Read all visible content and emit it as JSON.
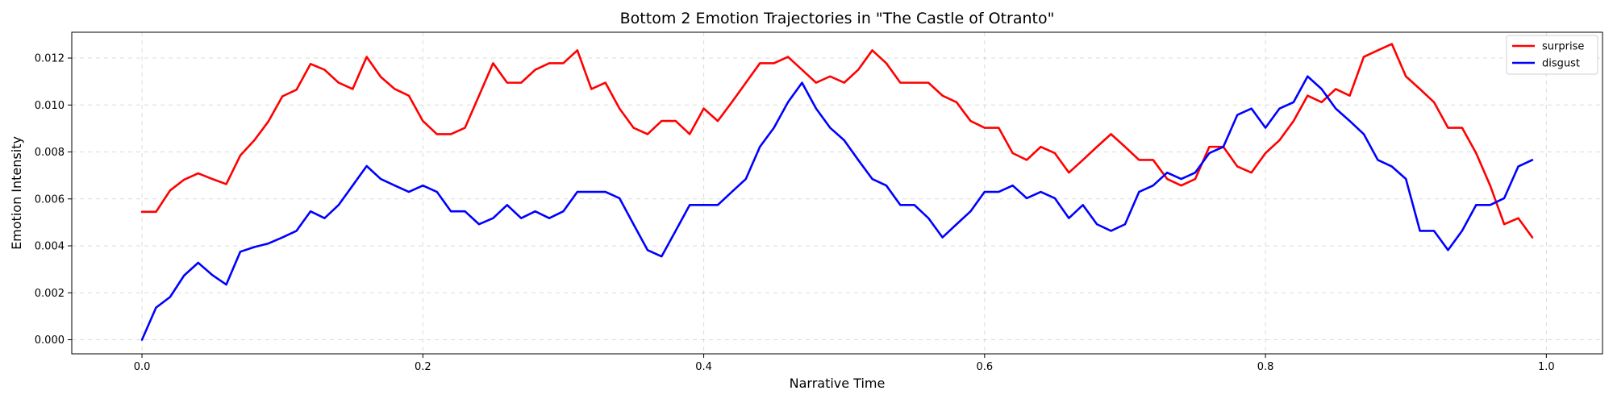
{
  "chart_data": {
    "type": "line",
    "title": "Bottom 2 Emotion Trajectories in \"The Castle of Otranto\"",
    "xlabel": "Narrative Time",
    "ylabel": "Emotion Intensity",
    "xlim": [
      -0.05,
      1.04
    ],
    "ylim": [
      -0.0006,
      0.0131
    ],
    "xticks": [
      0.0,
      0.2,
      0.4,
      0.6,
      0.8,
      1.0
    ],
    "xtick_labels": [
      "0.0",
      "0.2",
      "0.4",
      "0.6",
      "0.8",
      "1.0"
    ],
    "yticks": [
      0.0,
      0.002,
      0.004,
      0.006,
      0.008,
      0.01,
      0.012
    ],
    "ytick_labels": [
      "0.000",
      "0.002",
      "0.004",
      "0.006",
      "0.008",
      "0.010",
      "0.012"
    ],
    "grid": true,
    "legend_position": "top-right",
    "x": [
      0.0,
      0.01,
      0.02,
      0.03,
      0.04,
      0.05,
      0.06,
      0.07,
      0.08,
      0.09,
      0.1,
      0.11,
      0.12,
      0.13,
      0.14,
      0.15,
      0.16,
      0.17,
      0.18,
      0.19,
      0.2,
      0.21,
      0.22,
      0.23,
      0.24,
      0.25,
      0.26,
      0.27,
      0.28,
      0.29,
      0.3,
      0.31,
      0.32,
      0.33,
      0.34,
      0.35,
      0.36,
      0.37,
      0.38,
      0.39,
      0.4,
      0.41,
      0.42,
      0.43,
      0.44,
      0.45,
      0.46,
      0.47,
      0.48,
      0.49,
      0.5,
      0.51,
      0.52,
      0.53,
      0.54,
      0.55,
      0.56,
      0.57,
      0.58,
      0.59,
      0.6,
      0.61,
      0.62,
      0.63,
      0.64,
      0.65,
      0.66,
      0.67,
      0.68,
      0.69,
      0.7,
      0.71,
      0.72,
      0.73,
      0.74,
      0.75,
      0.76,
      0.77,
      0.78,
      0.79,
      0.8,
      0.81,
      0.82,
      0.83,
      0.84,
      0.85,
      0.86,
      0.87,
      0.88,
      0.89,
      0.9,
      0.91,
      0.92,
      0.93,
      0.94,
      0.95,
      0.96,
      0.97,
      0.98,
      0.99
    ],
    "series": [
      {
        "name": "surprise",
        "color": "#ff0000",
        "values": [
          0.00545,
          0.00545,
          0.00636,
          0.00682,
          0.00709,
          0.00685,
          0.00663,
          0.00785,
          0.0085,
          0.0093,
          0.01037,
          0.01065,
          0.01175,
          0.0115,
          0.01095,
          0.01068,
          0.01205,
          0.0112,
          0.01068,
          0.0104,
          0.00932,
          0.00876,
          0.00876,
          0.00903,
          0.0104,
          0.01178,
          0.01095,
          0.01095,
          0.0115,
          0.01178,
          0.01178,
          0.01233,
          0.01068,
          0.01095,
          0.00985,
          0.00903,
          0.00876,
          0.00932,
          0.00932,
          0.00876,
          0.00985,
          0.00932,
          0.01012,
          0.01095,
          0.01178,
          0.01178,
          0.01205,
          0.0115,
          0.01095,
          0.01122,
          0.01095,
          0.0115,
          0.01233,
          0.01178,
          0.01095,
          0.01095,
          0.01095,
          0.0104,
          0.01012,
          0.00932,
          0.00903,
          0.00903,
          0.00795,
          0.00766,
          0.00822,
          0.00795,
          0.00712,
          0.00766,
          0.00822,
          0.00876,
          0.00822,
          0.00766,
          0.00766,
          0.00685,
          0.00657,
          0.00685,
          0.00822,
          0.00822,
          0.00738,
          0.00712,
          0.00795,
          0.0085,
          0.00932,
          0.0104,
          0.01012,
          0.01068,
          0.0104,
          0.01205,
          0.01233,
          0.0126,
          0.01122,
          0.01068,
          0.01012,
          0.00903,
          0.00903,
          0.00795,
          0.00657,
          0.00492,
          0.00518,
          0.00436
        ]
      },
      {
        "name": "disgust",
        "color": "#0000ff",
        "values": [
          0.0,
          0.00137,
          0.00182,
          0.00274,
          0.00328,
          0.00276,
          0.00235,
          0.00375,
          0.00395,
          0.0041,
          0.00436,
          0.00464,
          0.00547,
          0.00518,
          0.00574,
          0.00657,
          0.0074,
          0.00685,
          0.00657,
          0.0063,
          0.00657,
          0.0063,
          0.00547,
          0.00547,
          0.00492,
          0.00518,
          0.00574,
          0.00518,
          0.00547,
          0.00518,
          0.00547,
          0.0063,
          0.0063,
          0.0063,
          0.00603,
          0.00492,
          0.00382,
          0.00355,
          0.00464,
          0.00574,
          0.00574,
          0.00574,
          0.0063,
          0.00685,
          0.00822,
          0.00903,
          0.01012,
          0.01095,
          0.00985,
          0.00903,
          0.0085,
          0.00766,
          0.00685,
          0.00657,
          0.00574,
          0.00574,
          0.00518,
          0.00436,
          0.00492,
          0.00547,
          0.0063,
          0.0063,
          0.00657,
          0.00603,
          0.0063,
          0.00603,
          0.00518,
          0.00574,
          0.00492,
          0.00464,
          0.00492,
          0.0063,
          0.00657,
          0.00712,
          0.00685,
          0.00712,
          0.00795,
          0.00822,
          0.00958,
          0.00985,
          0.00903,
          0.00985,
          0.01012,
          0.01122,
          0.01068,
          0.00985,
          0.00932,
          0.00876,
          0.00766,
          0.00738,
          0.00685,
          0.00464,
          0.00464,
          0.00382,
          0.00464,
          0.00574,
          0.00574,
          0.00603,
          0.00738,
          0.00766
        ]
      }
    ]
  }
}
